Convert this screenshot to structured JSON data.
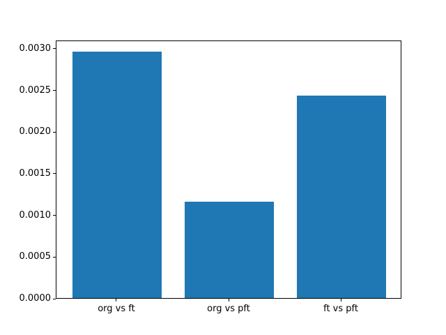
{
  "figure": {
    "background": "#ffffff"
  },
  "chart_data": {
    "type": "bar",
    "title": "",
    "xlabel": "",
    "ylabel": "",
    "categories": [
      "org vs ft",
      "org vs pft",
      "ft vs pft"
    ],
    "values": [
      0.00296,
      0.00116,
      0.00243
    ],
    "bar_color": "#1f77b4",
    "bar_width": 0.8,
    "xlim": [
      -0.54,
      2.54
    ],
    "ylim": [
      0,
      0.0031
    ],
    "yticks": [
      "0.0000",
      "0.0005",
      "0.0010",
      "0.0015",
      "0.0020",
      "0.0025",
      "0.0030"
    ],
    "grid": false,
    "legend": "none",
    "spine_color": "#000000",
    "tick_color": "#000000"
  }
}
